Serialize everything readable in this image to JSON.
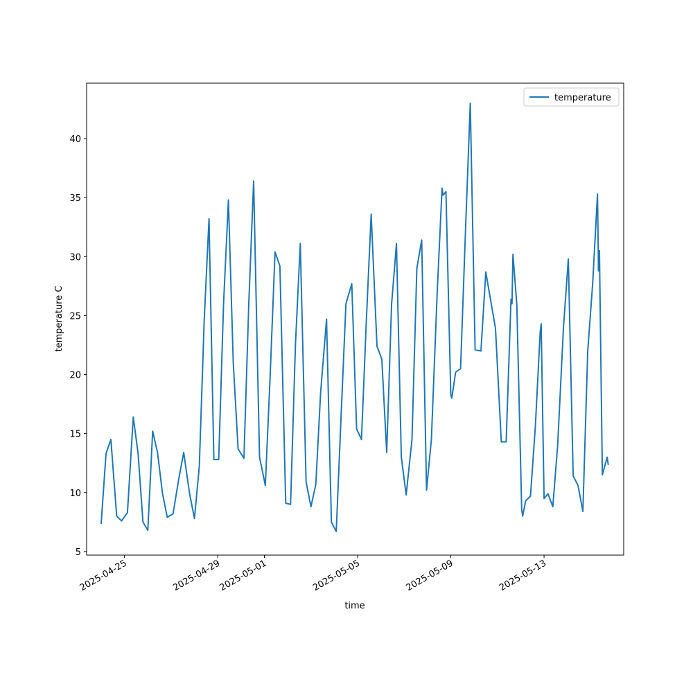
{
  "chart_data": {
    "type": "line",
    "xlabel": "time",
    "ylabel": "temperature C",
    "xlim": [
      "2025-04-23T09:00",
      "2025-05-16T10:00"
    ],
    "ylim": [
      4.7,
      44.7
    ],
    "x_ticks": [
      "2025-04-25",
      "2025-04-29",
      "2025-05-01",
      "2025-05-05",
      "2025-05-09",
      "2025-05-13"
    ],
    "y_ticks": [
      5,
      10,
      15,
      20,
      25,
      30,
      35,
      40
    ],
    "grid": false,
    "legend_position": "top-right",
    "series": [
      {
        "name": "temperature",
        "color": "#1f77b4",
        "points": [
          [
            "2025-04-24T00:00",
            7.4
          ],
          [
            "2025-04-24T05:00",
            13.3
          ],
          [
            "2025-04-24T10:00",
            14.5
          ],
          [
            "2025-04-24T16:00",
            8.0
          ],
          [
            "2025-04-24T21:00",
            7.6
          ],
          [
            "2025-04-25T03:00",
            8.3
          ],
          [
            "2025-04-25T09:00",
            16.4
          ],
          [
            "2025-04-25T14:00",
            13.3
          ],
          [
            "2025-04-25T19:00",
            7.5
          ],
          [
            "2025-04-26T00:00",
            6.8
          ],
          [
            "2025-04-26T05:00",
            15.2
          ],
          [
            "2025-04-26T10:00",
            13.4
          ],
          [
            "2025-04-26T15:00",
            10.0
          ],
          [
            "2025-04-26T20:00",
            7.9
          ],
          [
            "2025-04-27T02:00",
            8.2
          ],
          [
            "2025-04-27T08:00",
            11.2
          ],
          [
            "2025-04-27T13:00",
            13.4
          ],
          [
            "2025-04-27T19:00",
            9.9
          ],
          [
            "2025-04-28T00:00",
            7.8
          ],
          [
            "2025-04-28T05:00",
            12.2
          ],
          [
            "2025-04-28T10:00",
            24.5
          ],
          [
            "2025-04-28T15:00",
            33.2
          ],
          [
            "2025-04-28T20:00",
            12.8
          ],
          [
            "2025-04-29T01:00",
            12.8
          ],
          [
            "2025-04-29T06:00",
            26.0
          ],
          [
            "2025-04-29T11:00",
            34.8
          ],
          [
            "2025-04-29T16:00",
            21.0
          ],
          [
            "2025-04-29T21:00",
            13.7
          ],
          [
            "2025-04-30T03:00",
            12.9
          ],
          [
            "2025-04-30T08:00",
            26.0
          ],
          [
            "2025-04-30T13:00",
            36.4
          ],
          [
            "2025-04-30T19:00",
            13.0
          ],
          [
            "2025-05-01T01:00",
            10.6
          ],
          [
            "2025-05-01T06:00",
            20.0
          ],
          [
            "2025-05-01T11:00",
            30.4
          ],
          [
            "2025-05-01T16:00",
            29.2
          ],
          [
            "2025-05-01T22:00",
            9.1
          ],
          [
            "2025-05-02T03:00",
            9.0
          ],
          [
            "2025-05-02T08:00",
            22.5
          ],
          [
            "2025-05-02T13:00",
            31.1
          ],
          [
            "2025-05-02T19:00",
            10.9
          ],
          [
            "2025-05-03T00:00",
            8.8
          ],
          [
            "2025-05-03T05:00",
            10.7
          ],
          [
            "2025-05-03T10:00",
            18.5
          ],
          [
            "2025-05-03T16:00",
            24.7
          ],
          [
            "2025-05-03T21:00",
            7.5
          ],
          [
            "2025-05-04T02:00",
            6.7
          ],
          [
            "2025-05-04T07:00",
            16.5
          ],
          [
            "2025-05-04T12:00",
            26.0
          ],
          [
            "2025-05-04T18:00",
            27.7
          ],
          [
            "2025-05-04T23:00",
            15.4
          ],
          [
            "2025-05-05T04:00",
            14.5
          ],
          [
            "2025-05-05T09:00",
            24.5
          ],
          [
            "2025-05-05T14:00",
            33.6
          ],
          [
            "2025-05-05T20:00",
            22.4
          ],
          [
            "2025-05-06T01:00",
            21.3
          ],
          [
            "2025-05-06T06:00",
            13.4
          ],
          [
            "2025-05-06T11:00",
            26.0
          ],
          [
            "2025-05-06T16:00",
            31.1
          ],
          [
            "2025-05-06T21:00",
            13.0
          ],
          [
            "2025-05-07T02:00",
            9.8
          ],
          [
            "2025-05-07T08:00",
            14.5
          ],
          [
            "2025-05-07T13:00",
            29.0
          ],
          [
            "2025-05-07T18:00",
            31.4
          ],
          [
            "2025-05-07T23:00",
            10.2
          ],
          [
            "2025-05-08T04:00",
            14.5
          ],
          [
            "2025-05-08T10:00",
            27.0
          ],
          [
            "2025-05-08T15:00",
            35.8
          ],
          [
            "2025-05-08T16:00",
            35.2
          ],
          [
            "2025-05-08T19:00",
            35.5
          ],
          [
            "2025-05-09T00:00",
            18.3
          ],
          [
            "2025-05-09T01:00",
            18.0
          ],
          [
            "2025-05-09T05:00",
            20.2
          ],
          [
            "2025-05-09T10:00",
            20.5
          ],
          [
            "2025-05-09T15:00",
            32.0
          ],
          [
            "2025-05-09T20:00",
            43.0
          ],
          [
            "2025-05-10T01:00",
            22.1
          ],
          [
            "2025-05-10T07:00",
            22.0
          ],
          [
            "2025-05-10T12:00",
            28.7
          ],
          [
            "2025-05-10T22:00",
            23.9
          ],
          [
            "2025-05-11T04:00",
            14.3
          ],
          [
            "2025-05-11T09:00",
            14.3
          ],
          [
            "2025-05-11T14:00",
            26.4
          ],
          [
            "2025-05-11T15:00",
            26.0
          ],
          [
            "2025-05-11T16:00",
            30.2
          ],
          [
            "2025-05-11T20:00",
            25.9
          ],
          [
            "2025-05-12T01:00",
            8.6
          ],
          [
            "2025-05-12T02:00",
            8.0
          ],
          [
            "2025-05-12T05:00",
            9.3
          ],
          [
            "2025-05-12T10:00",
            9.7
          ],
          [
            "2025-05-12T15:00",
            15.6
          ],
          [
            "2025-05-12T20:00",
            23.6
          ],
          [
            "2025-05-12T21:00",
            24.3
          ],
          [
            "2025-05-13T00:00",
            9.5
          ],
          [
            "2025-05-13T04:00",
            9.9
          ],
          [
            "2025-05-13T09:00",
            8.8
          ],
          [
            "2025-05-13T14:00",
            14.0
          ],
          [
            "2025-05-13T20:00",
            24.0
          ],
          [
            "2025-05-14T01:00",
            29.8
          ],
          [
            "2025-05-14T06:00",
            11.4
          ],
          [
            "2025-05-14T11:00",
            10.6
          ],
          [
            "2025-05-14T16:00",
            8.4
          ],
          [
            "2025-05-14T21:00",
            22.0
          ],
          [
            "2025-05-15T02:00",
            27.7
          ],
          [
            "2025-05-15T07:00",
            35.3
          ],
          [
            "2025-05-15T08:00",
            28.8
          ],
          [
            "2025-05-15T09:00",
            30.5
          ],
          [
            "2025-05-15T12:00",
            11.5
          ],
          [
            "2025-05-15T17:00",
            13.0
          ],
          [
            "2025-05-15T18:00",
            12.4
          ]
        ]
      }
    ]
  }
}
